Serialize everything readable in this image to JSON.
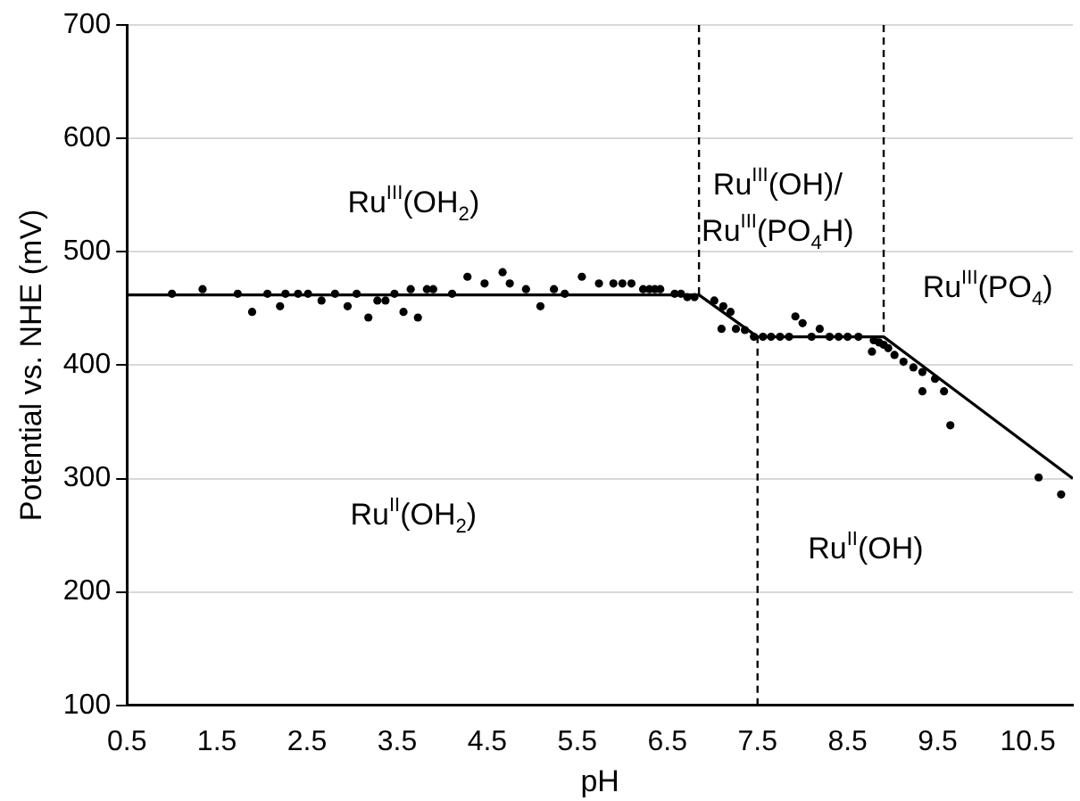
{
  "chart_data": {
    "type": "scatter",
    "xlabel": "pH",
    "ylabel": "Potential vs. NHE (mV)",
    "xlim": [
      0.5,
      11
    ],
    "xticks": [
      0.5,
      1.5,
      2.5,
      3.5,
      4.5,
      5.5,
      6.5,
      7.5,
      8.5,
      9.5,
      10.5
    ],
    "ylim": [
      100,
      700
    ],
    "yticks": [
      100,
      200,
      300,
      400,
      500,
      600,
      700
    ],
    "grid": "y",
    "legend": false,
    "series": [
      {
        "color": "#000000",
        "marker": "circle",
        "x": [
          1.0,
          1.34,
          1.73,
          1.89,
          2.06,
          2.2,
          2.26,
          2.4,
          2.51,
          2.66,
          2.81,
          2.95,
          3.05,
          3.18,
          3.28,
          3.37,
          3.47,
          3.57,
          3.65,
          3.73,
          3.83,
          3.9,
          4.11,
          4.28,
          4.47,
          4.67,
          4.75,
          4.93,
          5.09,
          5.24,
          5.36,
          5.55,
          5.74,
          5.9,
          6.0,
          6.1,
          6.23,
          6.3,
          6.36,
          6.42,
          6.58,
          6.65,
          6.72,
          6.8,
          7.02,
          7.12,
          7.2,
          7.1,
          7.26,
          7.36,
          7.46,
          7.56,
          7.65,
          7.75,
          7.85,
          7.92,
          8.0,
          8.1,
          8.19,
          8.3,
          8.4,
          8.5,
          8.62,
          8.77,
          8.79,
          8.85,
          8.9,
          8.95,
          9.02,
          9.12,
          9.23,
          9.33,
          9.33,
          9.47,
          9.57,
          9.64,
          10.62,
          10.87
        ],
        "values": [
          463,
          467,
          463,
          447,
          463,
          452,
          463,
          463,
          463,
          457,
          463,
          452,
          463,
          442,
          457,
          457,
          463,
          447,
          467,
          442,
          467,
          467,
          463,
          478,
          472,
          482,
          472,
          467,
          452,
          467,
          463,
          478,
          472,
          472,
          472,
          472,
          467,
          467,
          467,
          467,
          463,
          463,
          460,
          460,
          457,
          452,
          447,
          432,
          432,
          431,
          425,
          425,
          425,
          425,
          425,
          443,
          437,
          425,
          432,
          425,
          425,
          425,
          425,
          412,
          422,
          420,
          418,
          415,
          409,
          403,
          398,
          394,
          377,
          388,
          377,
          347,
          301,
          286
        ]
      },
      {
        "type": "line",
        "color": "#000000",
        "marker": "none",
        "line_style": "solid",
        "x": [
          0.5,
          6.85,
          7.5,
          8.9,
          11
        ],
        "values": [
          462,
          462,
          425,
          425,
          300
        ]
      },
      {
        "type": "line",
        "color": "#000000",
        "marker": "none",
        "line_style": "dashed",
        "x": [
          6.85,
          6.85
        ],
        "values": [
          700,
          462
        ]
      },
      {
        "type": "line",
        "color": "#000000",
        "marker": "none",
        "line_style": "dashed",
        "x": [
          8.9,
          8.9
        ],
        "values": [
          700,
          425
        ]
      },
      {
        "type": "line",
        "color": "#000000",
        "marker": "none",
        "line_style": "dashed",
        "x": [
          7.5,
          7.5
        ],
        "values": [
          100,
          425
        ]
      }
    ],
    "annotations": [
      "Ru$^{III}$(OH$_{2}$)",
      "Ru$^{II}$(OH$_{2}$)",
      "Ru$^{III}$(OH)/",
      "Ru$^{III}$(PO$_{4}$H)",
      "Ru$^{III}$(PO$_{4}$)",
      "Ru$^{II}$(OH)"
    ]
  }
}
